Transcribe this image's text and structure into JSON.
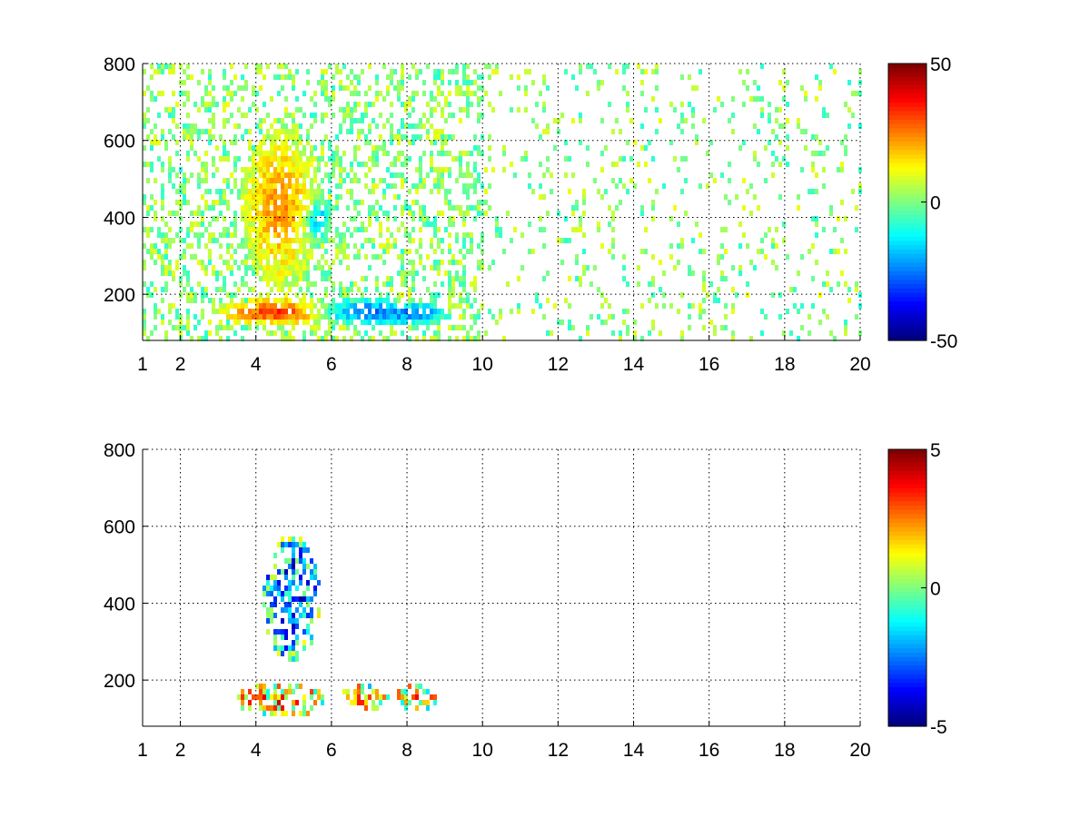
{
  "chart_data": [
    {
      "type": "heatmap",
      "title": "",
      "xlabel": "",
      "ylabel": "",
      "xlim": [
        1,
        20
      ],
      "ylim": [
        80,
        800
      ],
      "x_ticks": [
        1,
        2,
        4,
        6,
        8,
        10,
        12,
        14,
        16,
        18,
        20
      ],
      "y_ticks": [
        200,
        400,
        600,
        800
      ],
      "grid": "on",
      "colormap": "jet",
      "colorbar": {
        "clim": [
          -50,
          50
        ],
        "ticks": [
          50,
          0,
          -50
        ]
      },
      "features": [
        {
          "x": 4.6,
          "y": 430,
          "value": 22,
          "spread_x": 0.9,
          "spread_y": 180
        },
        {
          "x": 5.6,
          "y": 400,
          "value": -22,
          "spread_x": 0.3,
          "spread_y": 60
        },
        {
          "x": 4.5,
          "y": 160,
          "value": 30,
          "spread_x": 1.4,
          "spread_y": 30
        },
        {
          "x": 6.8,
          "y": 160,
          "value": -28,
          "spread_x": 1.2,
          "spread_y": 30
        },
        {
          "x": 8.3,
          "y": 155,
          "value": -20,
          "spread_x": 0.6,
          "spread_y": 25
        }
      ]
    },
    {
      "type": "heatmap",
      "title": "",
      "xlabel": "",
      "ylabel": "",
      "xlim": [
        1,
        20
      ],
      "ylim": [
        80,
        800
      ],
      "x_ticks": [
        1,
        2,
        4,
        6,
        8,
        10,
        12,
        14,
        16,
        18,
        20
      ],
      "y_ticks": [
        200,
        400,
        600,
        800
      ],
      "grid": "on",
      "colormap": "jet",
      "colorbar": {
        "clim": [
          -5,
          5
        ],
        "ticks": [
          5,
          0,
          -5
        ]
      },
      "features": [
        {
          "x": 4.9,
          "y": 420,
          "value": -3,
          "spread_x": 0.7,
          "spread_y": 150
        },
        {
          "x": 4.6,
          "y": 155,
          "value": 2,
          "spread_x": 1.1,
          "spread_y": 40
        },
        {
          "x": 6.8,
          "y": 160,
          "value": 1.5,
          "spread_x": 0.6,
          "spread_y": 30
        },
        {
          "x": 8.2,
          "y": 160,
          "value": 1.5,
          "spread_x": 0.5,
          "spread_y": 30
        }
      ]
    }
  ]
}
